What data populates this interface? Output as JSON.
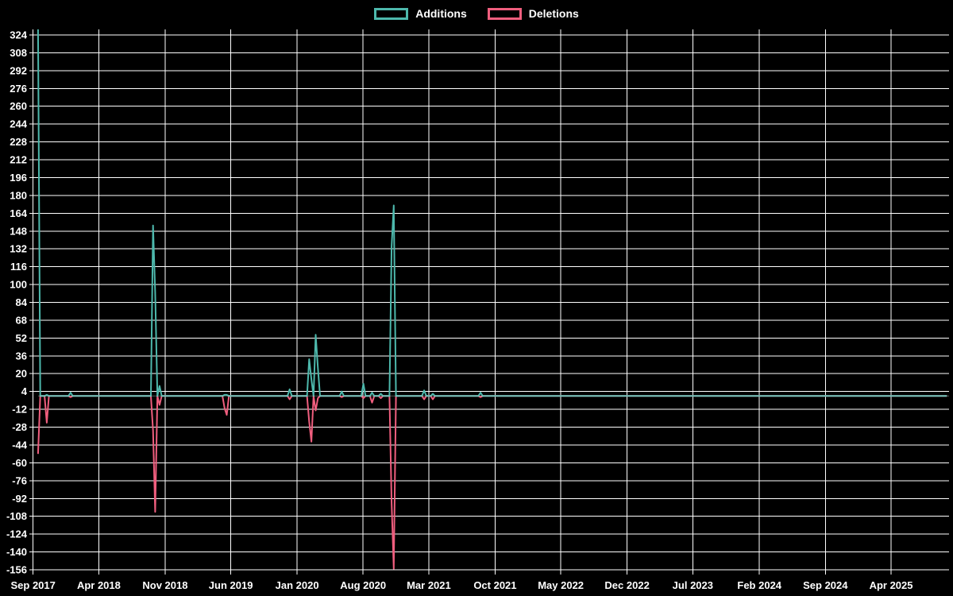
{
  "legend": {
    "position": "top",
    "items": [
      {
        "label": "Additions",
        "color": "#4db8ac"
      },
      {
        "label": "Deletions",
        "color": "#ef5e7e"
      }
    ]
  },
  "colors": {
    "background": "#000000",
    "grid": "#ffffff",
    "text": "#ffffff",
    "additions": "#4db8ac",
    "deletions": "#ef5e7e",
    "zero_line_blend": "rgba(255,255,255,0.32)"
  },
  "chart_data": {
    "type": "line",
    "title": "",
    "xlabel": "",
    "ylabel": "",
    "grid": true,
    "legend_position": "top",
    "x_axis": {
      "domain": [
        "2017-09-01",
        "2025-10-05"
      ],
      "tick_dates": [
        "2017-09-01",
        "2018-04-01",
        "2018-11-01",
        "2019-06-01",
        "2020-01-01",
        "2020-08-01",
        "2021-03-01",
        "2021-10-01",
        "2022-05-01",
        "2022-12-01",
        "2023-07-01",
        "2024-02-01",
        "2024-09-01",
        "2025-04-01"
      ],
      "tick_labels": [
        "Sep 2017",
        "Apr 2018",
        "Nov 2018",
        "Jun 2019",
        "Jan 2020",
        "Aug 2020",
        "Mar 2021",
        "Oct 2021",
        "May 2022",
        "Dec 2022",
        "Jul 2023",
        "Feb 2024",
        "Sep 2024",
        "Apr 2025"
      ]
    },
    "y_axis": {
      "tick_values": [
        324,
        308,
        292,
        276,
        260,
        244,
        228,
        212,
        196,
        180,
        164,
        148,
        132,
        116,
        100,
        84,
        68,
        52,
        36,
        20,
        4,
        -12,
        -28,
        -44,
        -60,
        -76,
        -92,
        -108,
        -124,
        -140,
        -156
      ],
      "min": -156,
      "max": 329,
      "step": 16
    },
    "series_names": [
      "Additions",
      "Deletions"
    ],
    "weekly_interval_days": 7,
    "series_start": "2017-09-17",
    "series_end": "2025-09-28",
    "default_value_other_weeks": 0,
    "points": [
      {
        "date": "2017-09-17",
        "additions": 335,
        "deletions": -52
      },
      {
        "date": "2017-10-15",
        "additions": 1,
        "deletions": -24
      },
      {
        "date": "2017-12-31",
        "additions": 3,
        "deletions": -1
      },
      {
        "date": "2018-09-23",
        "additions": 153,
        "deletions": -31
      },
      {
        "date": "2018-09-30",
        "additions": 93,
        "deletions": -104
      },
      {
        "date": "2018-10-14",
        "additions": 9,
        "deletions": -8
      },
      {
        "date": "2019-05-12",
        "additions": 1,
        "deletions": -11
      },
      {
        "date": "2019-05-19",
        "additions": 1,
        "deletions": -17
      },
      {
        "date": "2019-12-08",
        "additions": 6,
        "deletions": -3
      },
      {
        "date": "2020-02-09",
        "additions": 33,
        "deletions": -23
      },
      {
        "date": "2020-02-16",
        "additions": 15,
        "deletions": -41
      },
      {
        "date": "2020-03-01",
        "additions": 55,
        "deletions": -13
      },
      {
        "date": "2020-03-08",
        "additions": 25,
        "deletions": -2
      },
      {
        "date": "2020-05-24",
        "additions": 4,
        "deletions": -1
      },
      {
        "date": "2020-08-02",
        "additions": 11,
        "deletions": -2
      },
      {
        "date": "2020-08-30",
        "additions": 3,
        "deletions": -6
      },
      {
        "date": "2020-09-27",
        "additions": 2,
        "deletions": -2
      },
      {
        "date": "2020-11-01",
        "additions": 134,
        "deletions": -96
      },
      {
        "date": "2020-11-08",
        "additions": 171,
        "deletions": -155
      },
      {
        "date": "2021-02-14",
        "additions": 5,
        "deletions": -3
      },
      {
        "date": "2021-03-14",
        "additions": 2,
        "deletions": -3
      },
      {
        "date": "2021-08-15",
        "additions": 3,
        "deletions": -1
      }
    ]
  }
}
